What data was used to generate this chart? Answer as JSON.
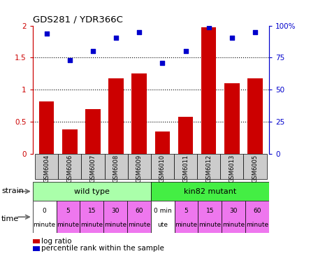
{
  "title": "GDS281 / YDR366C",
  "samples": [
    "GSM6004",
    "GSM6006",
    "GSM6007",
    "GSM6008",
    "GSM6009",
    "GSM6010",
    "GSM6011",
    "GSM6012",
    "GSM6013",
    "GSM6005"
  ],
  "log_ratio": [
    0.82,
    0.38,
    0.7,
    1.18,
    1.25,
    0.34,
    0.58,
    1.97,
    1.1,
    1.18
  ],
  "percentile_rank": [
    1.87,
    1.46,
    1.6,
    1.81,
    1.9,
    1.42,
    1.6,
    1.97,
    1.81,
    1.9
  ],
  "bar_color": "#cc0000",
  "dot_color": "#0000cc",
  "ylim": [
    0,
    2
  ],
  "yticks": [
    0,
    0.5,
    1.0,
    1.5,
    2.0
  ],
  "ytick_labels_left": [
    "0",
    "0.5",
    "1",
    "1.5",
    "2"
  ],
  "ytick_labels_right": [
    "0",
    "25",
    "50",
    "75",
    "100%"
  ],
  "dotted_lines": [
    0.5,
    1.0,
    1.5
  ],
  "strain_wild": "wild type",
  "strain_mutant": "kin82 mutant",
  "strain_wild_color": "#aaffaa",
  "strain_mutant_color": "#44ee44",
  "time_labels": [
    "0\nminute",
    "5\nminute",
    "15\nminute",
    "30\nminute",
    "60\nminute",
    "0 min\nute",
    "5\nminute",
    "15\nminute",
    "30\nminute",
    "60\nminute"
  ],
  "time_colors": [
    "#ffffff",
    "#ee77ee",
    "#ee77ee",
    "#ee77ee",
    "#ee77ee",
    "#ffffff",
    "#ee77ee",
    "#ee77ee",
    "#ee77ee",
    "#ee77ee"
  ],
  "sample_bg_color": "#cccccc",
  "legend_red": "log ratio",
  "legend_blue": "percentile rank within the sample"
}
